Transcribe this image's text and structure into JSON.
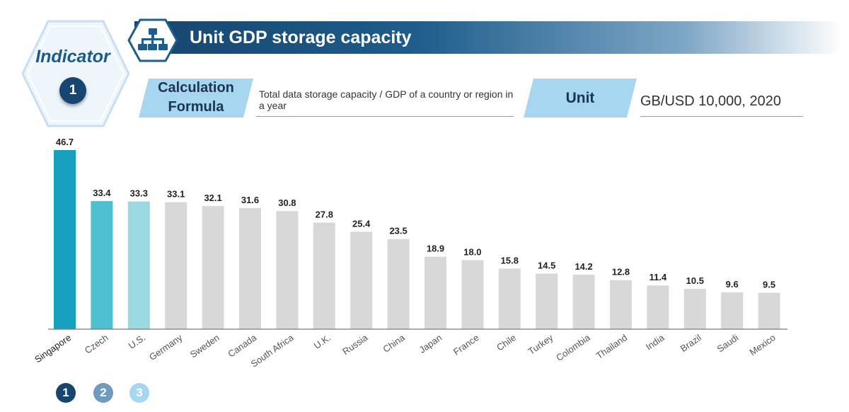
{
  "header": {
    "title": "Unit GDP storage capacity",
    "icon": "storage-network-icon"
  },
  "indicator": {
    "label": "Indicator",
    "number": "1"
  },
  "formula": {
    "label_line1": "Calculation",
    "label_line2": "Formula",
    "text": "Total data storage capacity / GDP of a country or region in a year"
  },
  "unit": {
    "label": "Unit",
    "value": "GB/USD 10,000, 2020"
  },
  "ranks": [
    "1",
    "2",
    "3"
  ],
  "colors": {
    "rank1": "#16a0be",
    "rank2": "#4fc0d2",
    "rank3": "#9bd8e2",
    "other": "#d8d8d8",
    "header": "#16456f"
  },
  "chart_data": {
    "type": "bar",
    "title": "Unit GDP storage capacity",
    "categories": [
      "Singapore",
      "Czech",
      "U.S.",
      "Germany",
      "Sweden",
      "Canada",
      "South Africa",
      "U.K.",
      "Russia",
      "China",
      "Japan",
      "France",
      "Chile",
      "Turkey",
      "Colombia",
      "Thailand",
      "India",
      "Brazil",
      "Saudi",
      "Mexico"
    ],
    "values": [
      46.7,
      33.4,
      33.3,
      33.1,
      32.1,
      31.6,
      30.8,
      27.8,
      25.4,
      23.5,
      18.9,
      18.0,
      15.8,
      14.5,
      14.2,
      12.8,
      11.4,
      10.5,
      9.6,
      9.5
    ],
    "labels": [
      "46.7",
      "33.4",
      "33.3",
      "33.1",
      "32.1",
      "31.6",
      "30.8",
      "27.8",
      "25.4",
      "23.5",
      "18.9",
      "18.0",
      "15.8",
      "14.5",
      "14.2",
      "12.8",
      "11.4",
      "10.5",
      "9.6",
      "9.5"
    ],
    "ylim": [
      0,
      50
    ],
    "xlabel": "",
    "ylabel": ""
  }
}
